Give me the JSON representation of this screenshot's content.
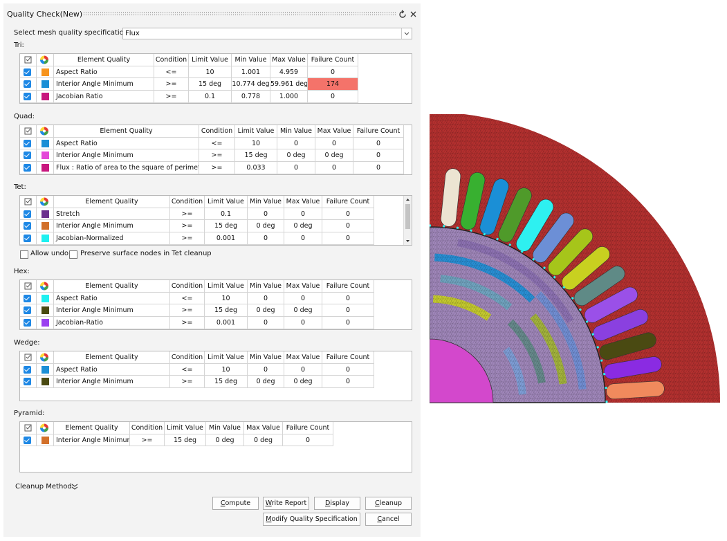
{
  "dialog": {
    "title": "Quality Check(New)",
    "spec_label": "Select mesh quality specification",
    "spec_value": "Flux"
  },
  "sections": [
    {
      "label": "Tri:",
      "headers": [
        "Element Quality",
        "Condition",
        "Limit Value",
        "Min Value",
        "Max Value",
        "Failure Count"
      ],
      "rows": [
        {
          "color": "#f7941d",
          "cells": [
            "Aspect Ratio",
            "<=",
            "10",
            "1.001",
            "4.959",
            "0"
          ]
        },
        {
          "color": "#1b8fd6",
          "alert": true,
          "cells": [
            "Interior Angle Minimum",
            ">=",
            "15 deg",
            "10.774 deg",
            "59.961 deg",
            "174"
          ]
        },
        {
          "color": "#c8177e",
          "cells": [
            "Jacobian Ratio",
            ">=",
            "0.1",
            "0.778",
            "1.000",
            "0"
          ]
        }
      ]
    },
    {
      "label": "Quad:",
      "headers": [
        "Element Quality",
        "Condition",
        "Limit Value",
        "Min Value",
        "Max Value",
        "Failure Count"
      ],
      "rows": [
        {
          "color": "#1b8fd6",
          "cells": [
            "Aspect Ratio",
            "<=",
            "10",
            "0",
            "0",
            "0"
          ]
        },
        {
          "color": "#e448d8",
          "cells": [
            "Interior Angle Minimum",
            ">=",
            "15 deg",
            "0 deg",
            "0 deg",
            "0"
          ]
        },
        {
          "color": "#c8177e",
          "cells": [
            "Flux : Ratio of area to the square of perimeter",
            ">=",
            "0.033",
            "0",
            "0",
            "0"
          ]
        }
      ]
    },
    {
      "label": "Tet:",
      "headers": [
        "Element Quality",
        "Condition",
        "Limit Value",
        "Min Value",
        "Max Value",
        "Failure Count"
      ],
      "rows": [
        {
          "color": "#6b2f8e",
          "cells": [
            "Stretch",
            ">=",
            "0.1",
            "0",
            "0",
            "0"
          ]
        },
        {
          "color": "#d2702a",
          "cells": [
            "Interior Angle Minimum",
            ">=",
            "15 deg",
            "0 deg",
            "0 deg",
            "0"
          ]
        },
        {
          "color": "#1ef0f0",
          "cells": [
            "Jacobian-Normalized",
            ">=",
            "0.001",
            "0",
            "0",
            "0"
          ]
        }
      ]
    },
    {
      "label": "Hex:",
      "headers": [
        "Element Quality",
        "Condition",
        "Limit Value",
        "Min Value",
        "Max Value",
        "Failure Count"
      ],
      "rows": [
        {
          "color": "#1ef0f0",
          "cells": [
            "Aspect Ratio",
            "<=",
            "10",
            "0",
            "0",
            "0"
          ]
        },
        {
          "color": "#4a4a12",
          "cells": [
            "Interior Angle Minimum",
            ">=",
            "15 deg",
            "0 deg",
            "0 deg",
            "0"
          ]
        },
        {
          "color": "#9a40f0",
          "cells": [
            "Jacobian-Ratio",
            ">=",
            "0.001",
            "0",
            "0",
            "0"
          ]
        }
      ]
    },
    {
      "label": "Wedge:",
      "headers": [
        "Element Quality",
        "Condition",
        "Limit Value",
        "Min Value",
        "Max Value",
        "Failure Count"
      ],
      "rows": [
        {
          "color": "#1b8fd6",
          "cells": [
            "Aspect Ratio",
            "<=",
            "10",
            "0",
            "0",
            "0"
          ]
        },
        {
          "color": "#4a4a12",
          "cells": [
            "Interior Angle Minimum",
            ">=",
            "15 deg",
            "0 deg",
            "0 deg",
            "0"
          ]
        }
      ]
    },
    {
      "label": "Pyramid:",
      "headers": [
        "Element Quality",
        "Condition",
        "Limit Value",
        "Min Value",
        "Max Value",
        "Failure Count"
      ],
      "rows": [
        {
          "color": "#d2702a",
          "cells": [
            "Interior Angle Minimum",
            ">=",
            "15 deg",
            "0 deg",
            "0 deg",
            "0"
          ]
        }
      ]
    }
  ],
  "options": [
    "Allow undo",
    "Preserve surface nodes in Tet cleanup"
  ],
  "cleanup_method": "Cleanup Method:",
  "buttons": [
    "Compute",
    "Write Report",
    "Display",
    "Cleanup",
    "Modify Quality Specification",
    "Cancel"
  ]
}
